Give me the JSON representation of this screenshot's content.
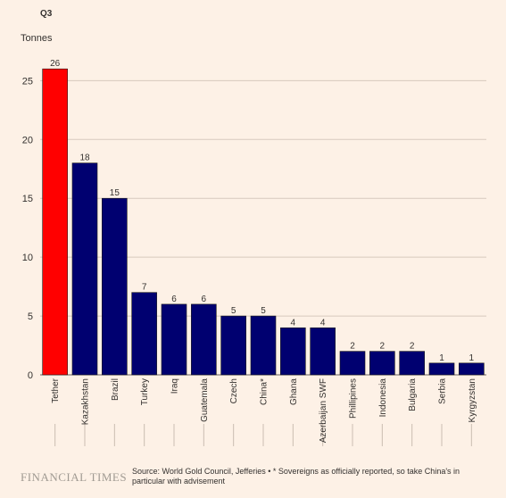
{
  "panel_label": "Q3",
  "source_note": "Source: World Gold Council, Jefferies • * Sovereigns as officially reported, so take China's in particular with advisement",
  "brand": "FINANCIAL TIMES",
  "colors": {
    "highlight": "#ff0000",
    "bar": "#000070",
    "grid": "#d7c9bd",
    "background": "#fdf1e6"
  },
  "chart_data": {
    "type": "bar",
    "ylabel": "Tonnes",
    "ylim": [
      0,
      27
    ],
    "yticks": [
      0,
      5,
      10,
      15,
      20,
      25
    ],
    "categories": [
      "Tether",
      "Kazakhstan",
      "Brazil",
      "Turkey",
      "Iraq",
      "Guatemala",
      "Czech",
      "China*",
      "Ghana",
      "Azerbaijan SWF",
      "Phillipines",
      "Indonesia",
      "Bulgaria",
      "Serbia",
      "Kyrgyzstan"
    ],
    "values": [
      26,
      18,
      15,
      7,
      6,
      6,
      5,
      5,
      4,
      4,
      2,
      2,
      2,
      1,
      1
    ],
    "highlight": "Tether",
    "grid": true
  }
}
